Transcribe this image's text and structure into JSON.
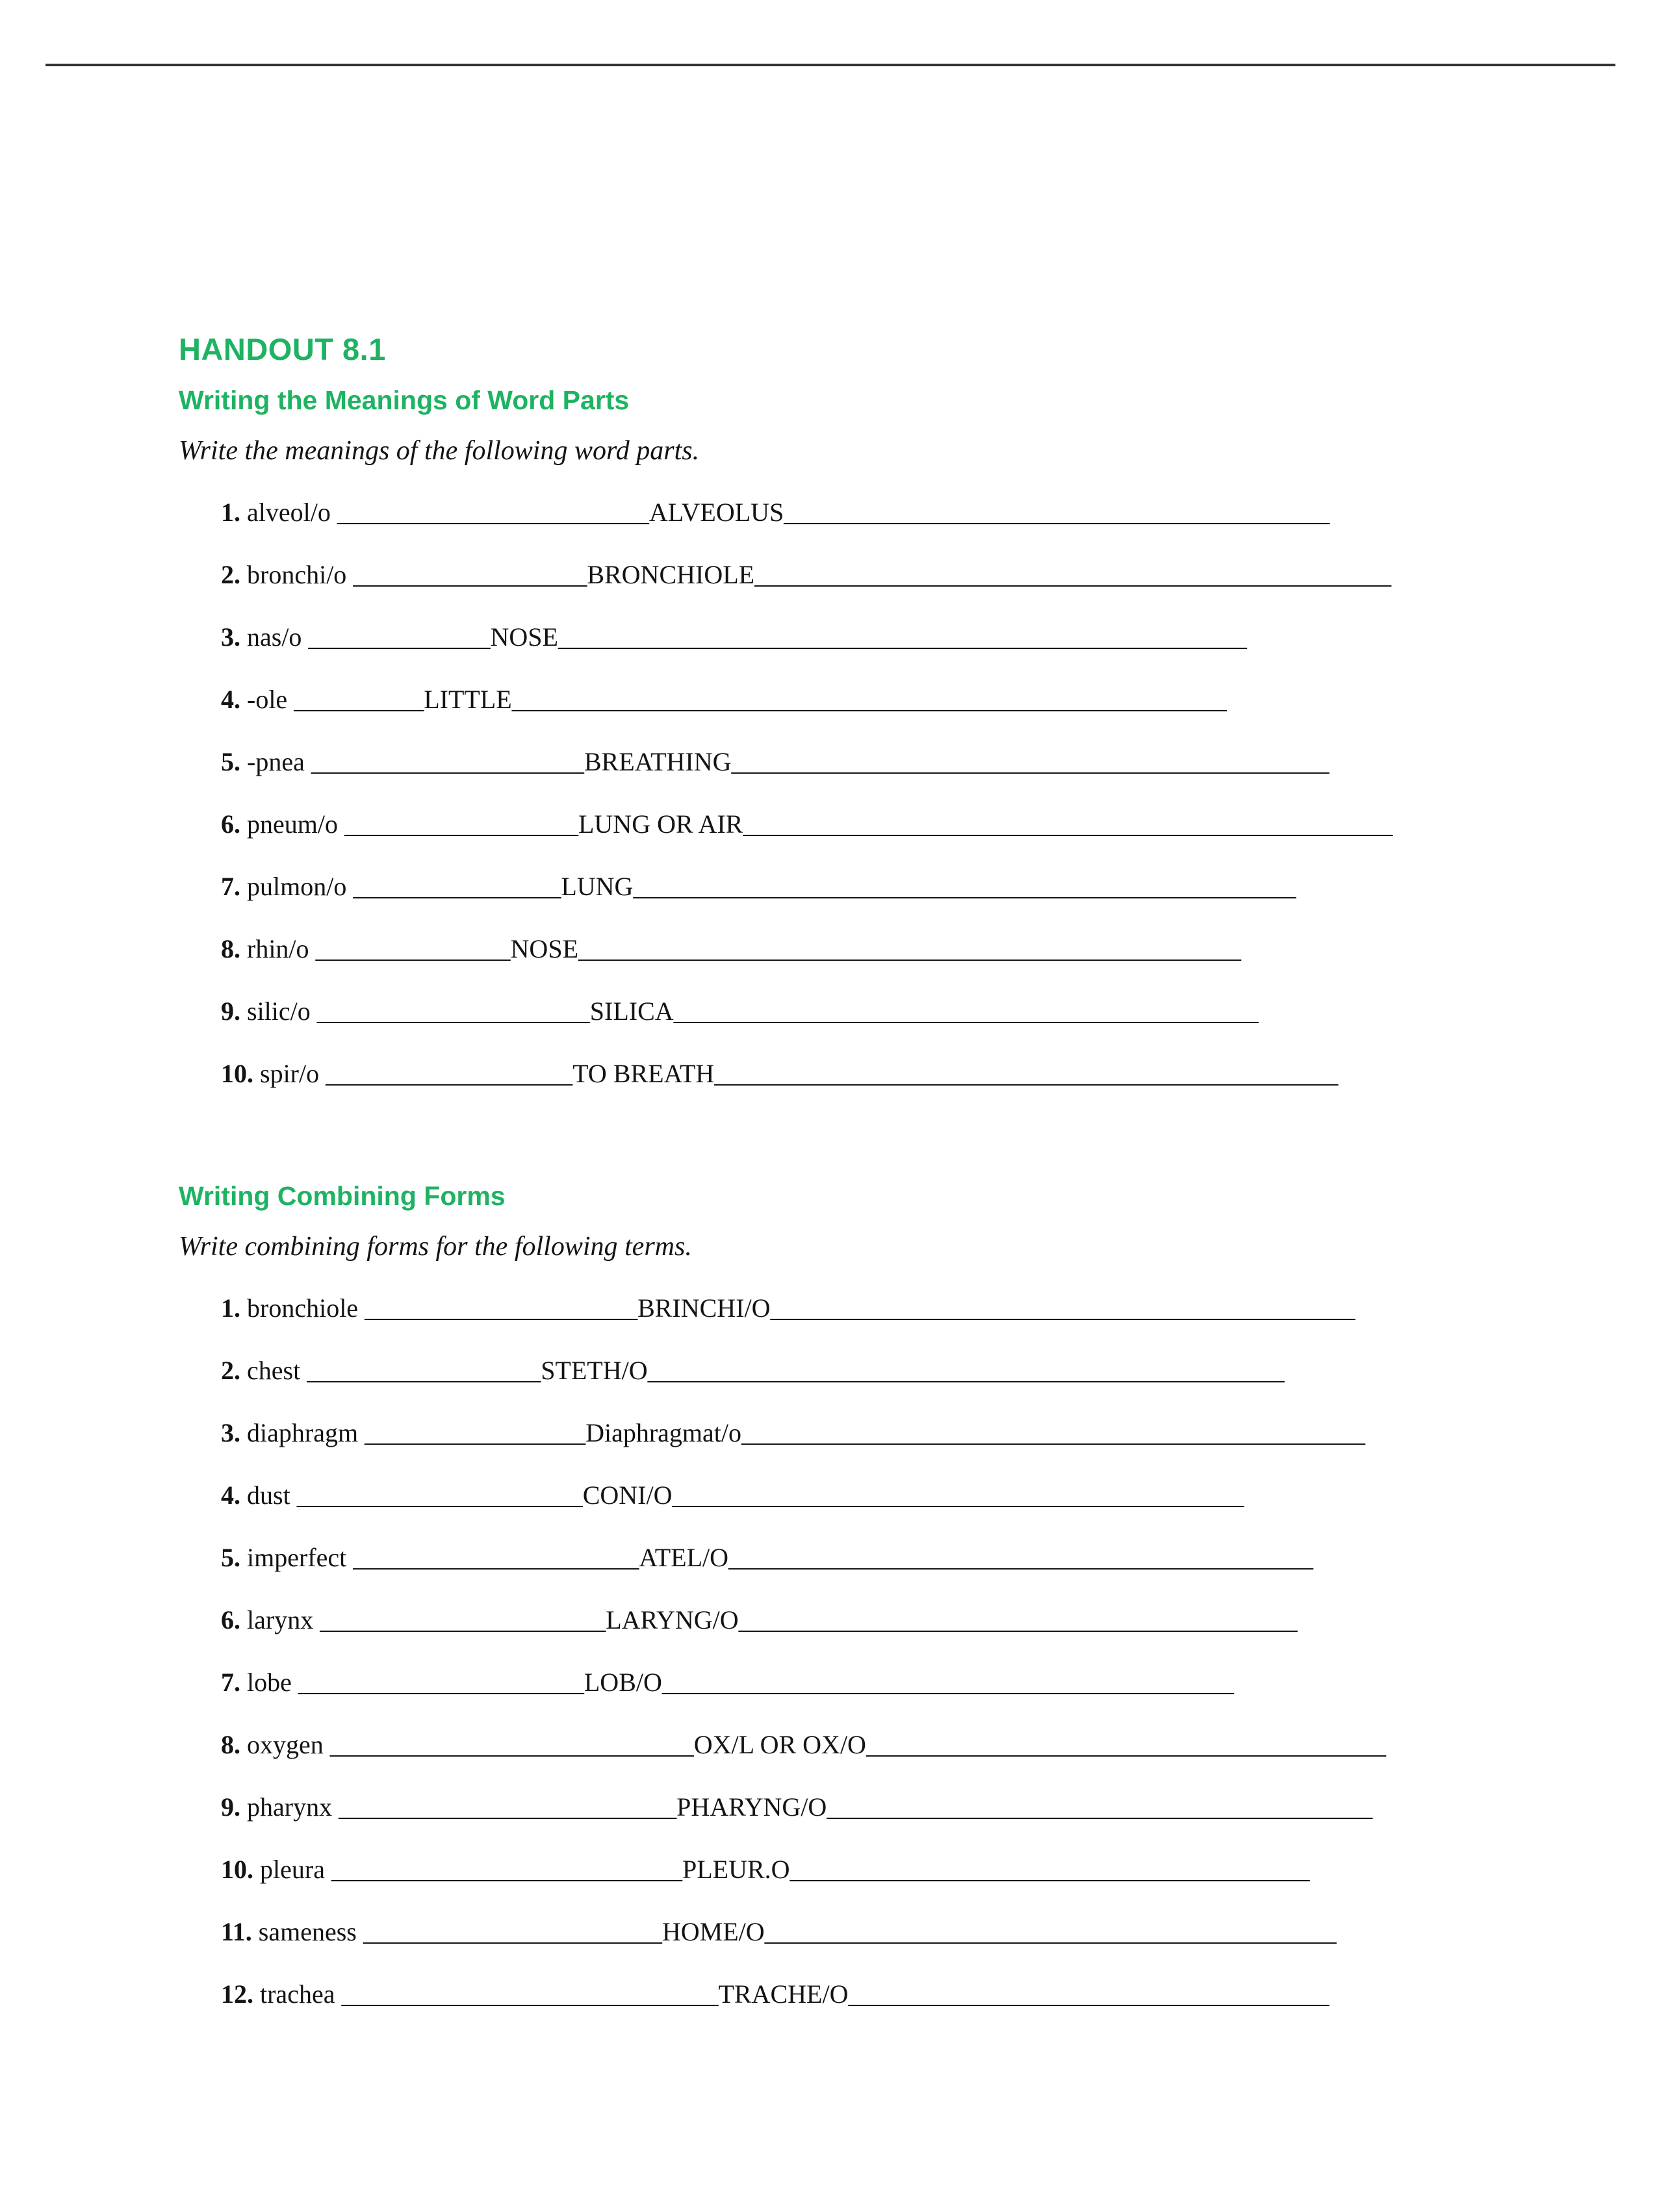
{
  "colors": {
    "accent": "#1db362",
    "rule": "#323232",
    "text": "#141414",
    "background": "#ffffff"
  },
  "typography": {
    "title_fontsize_pt": 35,
    "section_fontsize_pt": 31,
    "instruction_fontsize_pt": 32,
    "item_fontsize_pt": 30,
    "title_weight": 900,
    "section_weight": 700
  },
  "header": {
    "handout_label": "HANDOUT 8.1"
  },
  "section1": {
    "title": "Writing the Meanings of Word Parts",
    "instructions": "Write the meanings of the following word parts.",
    "items": [
      {
        "n": "1.",
        "term": " alveol/o ",
        "blank": "________________________",
        "answer": "ALVEOLUS",
        "tail": "__________________________________________"
      },
      {
        "n": "2.",
        "term": " bronchi/o ",
        "blank": "__________________",
        "answer": "BRONCHIOLE",
        "tail": "_________________________________________________"
      },
      {
        "n": "3.",
        "term": " nas/o ",
        "blank": "______________",
        "answer": "NOSE",
        "tail": "_____________________________________________________"
      },
      {
        "n": "4.",
        "term": " -ole ",
        "blank": "__________",
        "answer": "LITTLE",
        "tail": "_______________________________________________________"
      },
      {
        "n": "5.",
        "term": " -pnea ",
        "blank": "_____________________",
        "answer": "BREATHING",
        "tail": "______________________________________________"
      },
      {
        "n": "6.",
        "term": " pneum/o ",
        "blank": "__________________",
        "answer": "LUNG OR AIR",
        "tail": "__________________________________________________"
      },
      {
        "n": "7.",
        "term": " pulmon/o ",
        "blank": "________________",
        "answer": "LUNG",
        "tail": "___________________________________________________"
      },
      {
        "n": "8.",
        "term": " rhin/o ",
        "blank": "_______________",
        "answer": "NOSE",
        "tail": "___________________________________________________"
      },
      {
        "n": "9.",
        "term": " silic/o ",
        "blank": "_____________________",
        "answer": "SILICA",
        "tail": "_____________________________________________"
      },
      {
        "n": "10.",
        "term": " spir/o ",
        "blank": "___________________",
        "answer": "TO BREATH",
        "tail": "________________________________________________"
      }
    ]
  },
  "section2": {
    "title": "Writing Combining Forms",
    "instructions": "Write combining forms for the following terms.",
    "items": [
      {
        "n": "1.",
        "term": " bronchiole ",
        "blank": "_____________________",
        "answer": "BRINCHI/O",
        "tail": "_____________________________________________"
      },
      {
        "n": "2.",
        "term": " chest ",
        "blank": "__________________",
        "answer": "STETH/O",
        "tail": "_________________________________________________"
      },
      {
        "n": "3.",
        "term": " diaphragm ",
        "blank": "_________________",
        "answer": "Diaphragmat/o",
        "tail": "________________________________________________"
      },
      {
        "n": "4.",
        "term": " dust ",
        "blank": "______________________",
        "answer": "CONI/O",
        "tail": "____________________________________________"
      },
      {
        "n": "5.",
        "term": " imperfect ",
        "blank": "______________________",
        "answer": "ATEL/O",
        "tail": "_____________________________________________"
      },
      {
        "n": "6.",
        "term": " larynx ",
        "blank": "______________________",
        "answer": "LARYNG/O",
        "tail": "___________________________________________"
      },
      {
        "n": "7.",
        "term": " lobe ",
        "blank": "______________________",
        "answer": "LOB/O",
        "tail": "____________________________________________"
      },
      {
        "n": "8.",
        "term": " oxygen ",
        "blank": "____________________________",
        "answer": "OX/L OR OX/O",
        "tail": "________________________________________"
      },
      {
        "n": "9.",
        "term": " pharynx ",
        "blank": "__________________________",
        "answer": "PHARYNG/O",
        "tail": "__________________________________________"
      },
      {
        "n": "10.",
        "term": " pleura ",
        "blank": "___________________________",
        "answer": "PLEUR.O",
        "tail": "________________________________________"
      },
      {
        "n": "11.",
        "term": " sameness ",
        "blank": "_______________________",
        "answer": "HOME/O",
        "tail": "____________________________________________"
      },
      {
        "n": "12.",
        "term": " trachea ",
        "blank": "_____________________________",
        "answer": "TRACHE/O",
        "tail": "_____________________________________"
      }
    ]
  }
}
